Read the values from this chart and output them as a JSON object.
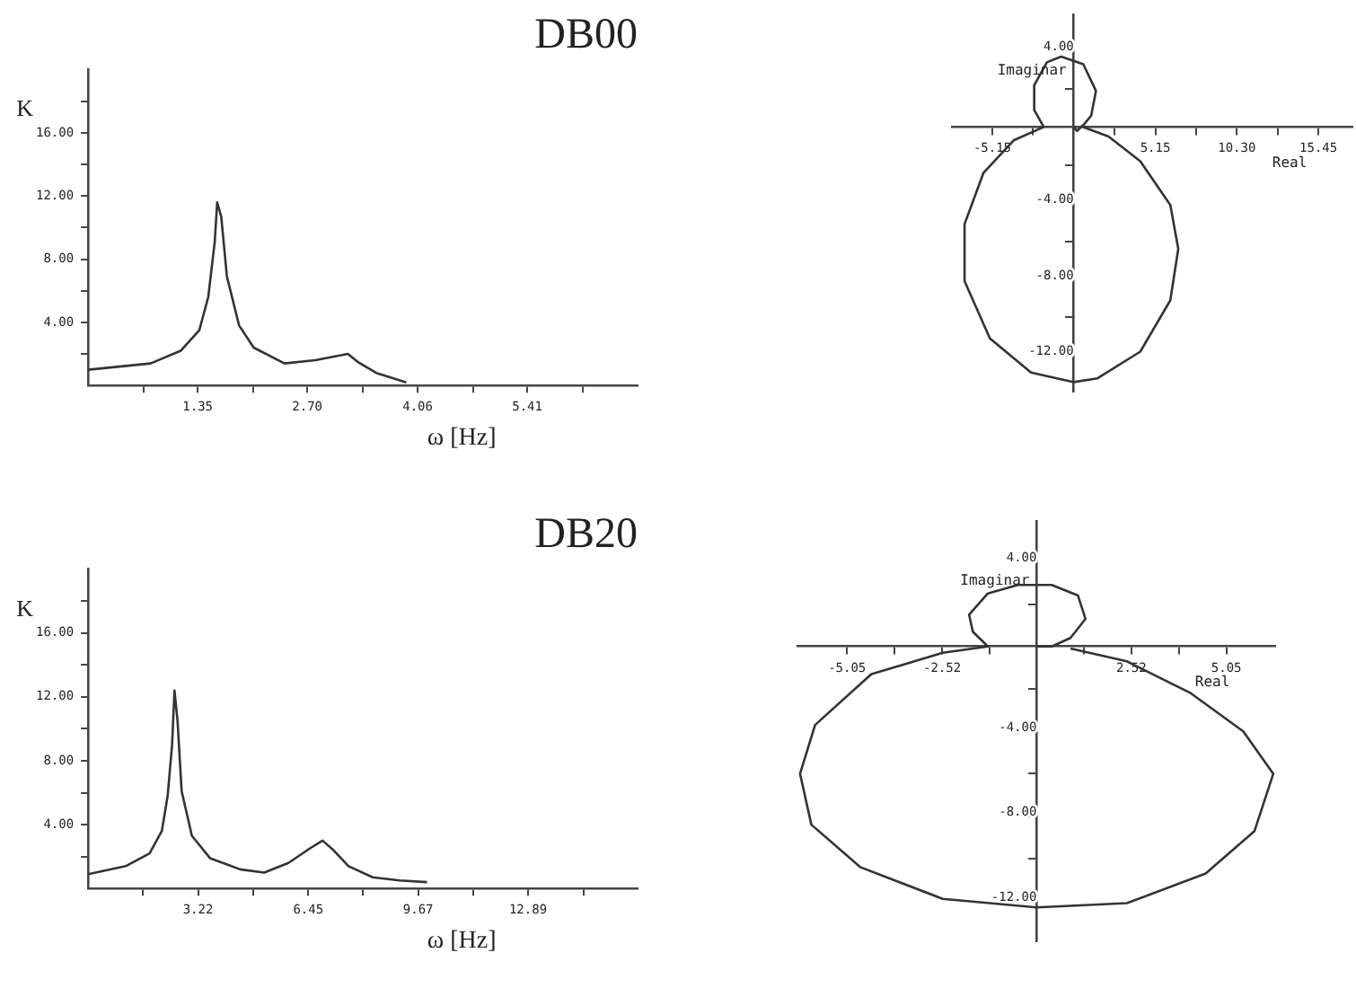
{
  "chart_data": [
    {
      "type": "line",
      "title": "DB00",
      "xlabel": "ω [Hz]",
      "ylabel": "K",
      "grid": false,
      "xlim": [
        0,
        6.77
      ],
      "ylim": [
        0,
        20
      ],
      "xticks": [
        {
          "value": 0.68,
          "label": null
        },
        1.35,
        {
          "value": 2.03,
          "label": null
        },
        {
          "value": 2.7,
          "label": "2.70"
        },
        {
          "value": 3.38,
          "label": null
        },
        4.06,
        {
          "value": 4.74,
          "label": null
        },
        5.41,
        {
          "value": 6.09,
          "label": null
        }
      ],
      "yticks": [
        {
          "value": 2,
          "label": null
        },
        {
          "value": 4,
          "label": "4.00"
        },
        {
          "value": 6,
          "label": null
        },
        {
          "value": 8,
          "label": "8.00"
        },
        {
          "value": 10,
          "label": null
        },
        {
          "value": 12,
          "label": "12.00"
        },
        {
          "value": 14,
          "label": null
        },
        {
          "value": 16,
          "label": "16.00"
        },
        {
          "value": 18,
          "label": null
        }
      ],
      "series": [
        {
          "color": "#333333",
          "x": [
            0,
            0.77,
            1.14,
            1.37,
            1.48,
            1.56,
            1.59,
            1.64,
            1.71,
            1.86,
            2.04,
            2.42,
            2.8,
            3.1,
            3.2,
            3.32,
            3.55,
            3.92
          ],
          "values": [
            1.0,
            1.4,
            2.2,
            3.5,
            5.6,
            9.1,
            11.6,
            10.7,
            6.9,
            3.8,
            2.4,
            1.4,
            1.6,
            1.9,
            2.0,
            1.5,
            0.8,
            0.2
          ]
        }
      ]
    },
    {
      "type": "line",
      "xlabel": "Real",
      "ylabel": "Imaginar",
      "grid": false,
      "xlim": [
        -7.7,
        17.6
      ],
      "ylim": [
        -13.9,
        5.9
      ],
      "xticks": [
        -5.15,
        {
          "value": -2.58,
          "label": null
        },
        {
          "value": 2.58,
          "label": null
        },
        5.15,
        {
          "value": 7.73,
          "label": null
        },
        {
          "value": 10.3,
          "label": "10.30"
        },
        {
          "value": 12.88,
          "label": null
        },
        15.45
      ],
      "yticks": [
        {
          "value": -12,
          "label": "-12.00"
        },
        {
          "value": -10,
          "label": null
        },
        {
          "value": -8,
          "label": "-8.00"
        },
        {
          "value": -6,
          "label": null
        },
        {
          "value": -4,
          "label": "-4.00"
        },
        {
          "value": -2,
          "label": null
        },
        {
          "value": 2,
          "label": null
        },
        {
          "value": 4,
          "label": "4.00"
        }
      ],
      "series": [
        {
          "color": "#333333",
          "x": [
            0.6,
            2.2,
            4.2,
            6.1,
            6.6,
            6.1,
            4.2,
            1.5,
            0,
            -2.7,
            -5.3,
            -6.9,
            -6.9,
            -5.7,
            -3.8,
            -1.9,
            -2.5,
            -2.5,
            -1.7,
            -0.8,
            0.6,
            1.4,
            1.1,
            0.6,
            0.2,
            0
          ],
          "values": [
            0,
            -0.5,
            -1.8,
            -4.1,
            -6.4,
            -9.1,
            -11.8,
            -13.2,
            -13.4,
            -12.9,
            -11.1,
            -8.1,
            -5.1,
            -2.4,
            -0.7,
            0,
            0.9,
            2.2,
            3.4,
            3.7,
            3.3,
            1.9,
            0.6,
            0.1,
            -0.2,
            0
          ]
        }
      ]
    },
    {
      "type": "line",
      "title": "DB20",
      "xlabel": "ω [Hz]",
      "ylabel": "K",
      "grid": false,
      "xlim": [
        0,
        16.1
      ],
      "ylim": [
        0,
        20
      ],
      "xticks": [
        {
          "value": 1.61,
          "label": null
        },
        3.22,
        {
          "value": 4.84,
          "label": null
        },
        6.45,
        {
          "value": 8.06,
          "label": null
        },
        9.67,
        {
          "value": 11.28,
          "label": null
        },
        12.89,
        {
          "value": 14.51,
          "label": null
        }
      ],
      "yticks": [
        {
          "value": 2,
          "label": null
        },
        {
          "value": 4,
          "label": "4.00"
        },
        {
          "value": 6,
          "label": null
        },
        {
          "value": 8,
          "label": "8.00"
        },
        {
          "value": 10,
          "label": null
        },
        {
          "value": 12,
          "label": "12.00"
        },
        {
          "value": 14,
          "label": null
        },
        {
          "value": 16,
          "label": "16.00"
        },
        {
          "value": 18,
          "label": null
        }
      ],
      "series": [
        {
          "color": "#333333",
          "x": [
            0,
            1.1,
            1.8,
            2.16,
            2.33,
            2.46,
            2.53,
            2.62,
            2.74,
            3.04,
            3.57,
            4.45,
            5.16,
            5.87,
            6.49,
            6.87,
            7.19,
            7.63,
            8.34,
            9.13,
            9.93
          ],
          "values": [
            0.9,
            1.4,
            2.2,
            3.6,
            5.8,
            9.0,
            12.4,
            10.5,
            6.1,
            3.3,
            1.9,
            1.2,
            1.0,
            1.6,
            2.5,
            3.0,
            2.4,
            1.4,
            0.7,
            0.5,
            0.4
          ]
        }
      ]
    },
    {
      "type": "line",
      "xlabel": "Real",
      "ylabel": "Imaginar",
      "grid": false,
      "xlim": [
        -6.37,
        6.35
      ],
      "ylim": [
        -13.9,
        5.9
      ],
      "xticks": [
        -5.05,
        {
          "value": -3.79,
          "label": null
        },
        -2.52,
        {
          "value": -1.26,
          "label": null
        },
        {
          "value": 1.26,
          "label": null
        },
        2.52,
        {
          "value": 3.79,
          "label": null
        },
        5.05
      ],
      "yticks": [
        {
          "value": -12,
          "label": "-12.00"
        },
        {
          "value": -10,
          "label": null
        },
        {
          "value": -8,
          "label": "-8.00"
        },
        {
          "value": -6,
          "label": null
        },
        {
          "value": -4,
          "label": "-4.00"
        },
        {
          "value": -2,
          "label": null
        },
        {
          "value": 2,
          "label": null
        },
        {
          "value": 4,
          "label": "4.00"
        }
      ],
      "series": [
        {
          "color": "#333333",
          "x": [
            0.9,
            2.4,
            4.1,
            5.5,
            6.3,
            5.8,
            4.5,
            2.4,
            0,
            -2.5,
            -4.7,
            -6,
            -6.3,
            -5.9,
            -4.4,
            -2.5,
            -1.3,
            -1.7,
            -1.8,
            -1.3,
            -0.5,
            0.4,
            1.1,
            1.3,
            0.9,
            0.4,
            0
          ],
          "values": [
            -0.1,
            -0.7,
            -2.2,
            -4,
            -6,
            -8.7,
            -10.7,
            -12.1,
            -12.3,
            -11.9,
            -10.4,
            -8.4,
            -6,
            -3.7,
            -1.3,
            -0.3,
            0,
            0.7,
            1.5,
            2.5,
            2.9,
            2.9,
            2.4,
            1.3,
            0.4,
            0,
            0
          ]
        }
      ]
    }
  ]
}
